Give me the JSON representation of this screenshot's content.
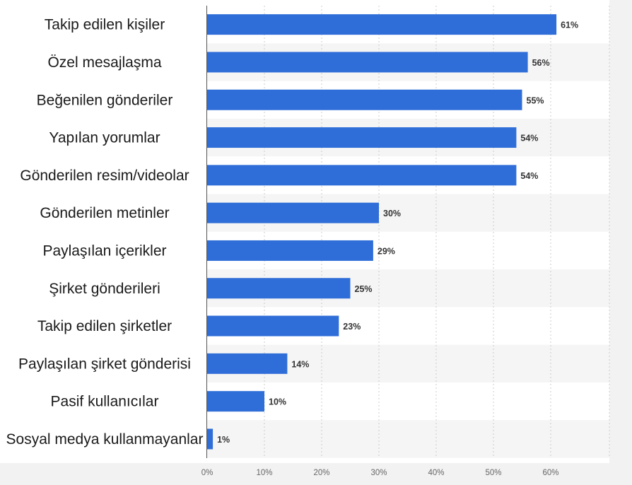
{
  "chart_data": {
    "type": "bar",
    "orientation": "horizontal",
    "categories": [
      "Takip edilen kişiler",
      "Özel mesajlaşma",
      "Beğenilen gönderiler",
      "Yapılan yorumlar",
      "Gönderilen resim/videolar",
      "Gönderilen metinler",
      "Paylaşılan içerikler",
      "Şirket gönderileri",
      "Takip edilen şirketler",
      "Paylaşılan şirket gönderisi",
      "Pasif kullanıcılar",
      "Sosyal medya kullanmayanlar"
    ],
    "values": [
      61,
      56,
      55,
      54,
      54,
      30,
      29,
      25,
      23,
      14,
      10,
      1
    ],
    "value_labels": [
      "61%",
      "56%",
      "55%",
      "54%",
      "54%",
      "30%",
      "29%",
      "25%",
      "23%",
      "14%",
      "10%",
      "1%"
    ],
    "xlim": [
      0,
      70
    ],
    "xticks": [
      0,
      10,
      20,
      30,
      40,
      50,
      60
    ],
    "xtick_labels": [
      "0%",
      "10%",
      "20%",
      "30%",
      "40%",
      "50%",
      "60%"
    ],
    "grid": "vertical dashed",
    "colors": {
      "bar": "#2f6ed8",
      "background": "#f2f2f2",
      "plot_background": "#ffffff",
      "stripe": "#f5f5f5",
      "grid": "#cccccc"
    }
  }
}
